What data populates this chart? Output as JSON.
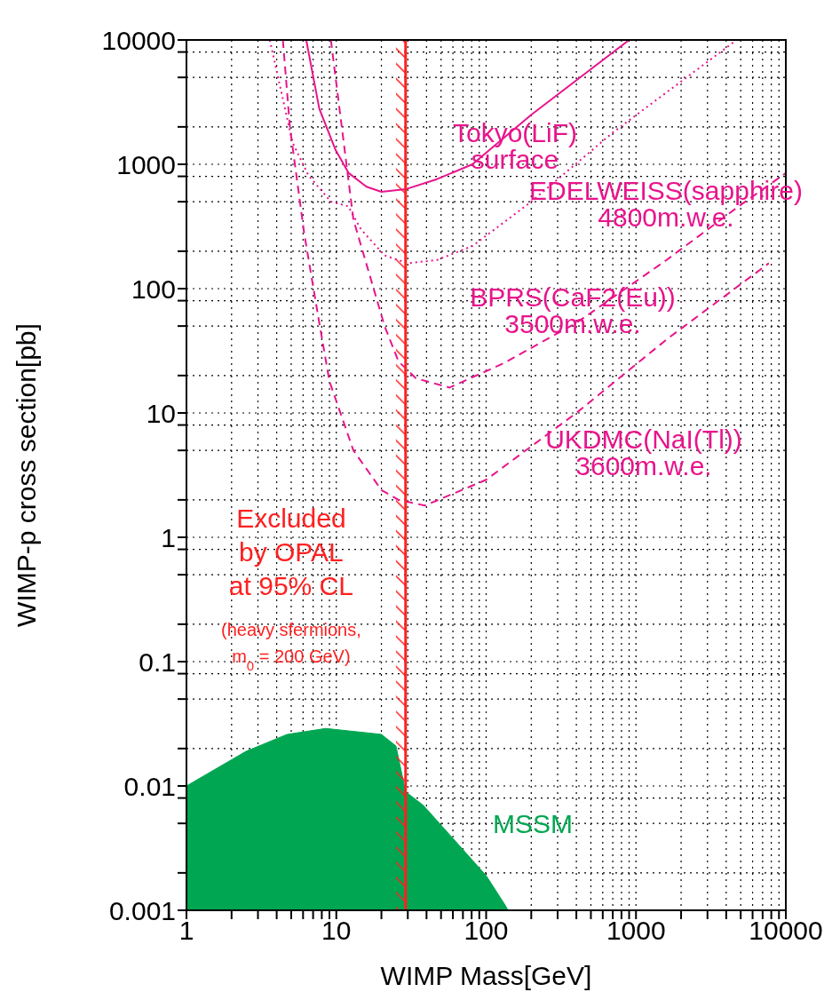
{
  "chart_data": {
    "type": "line",
    "xlabel": "WIMP Mass[GeV]",
    "ylabel": "WIMP-p cross section[pb]",
    "log": "xy",
    "grid": true,
    "xlim": [
      1,
      10000
    ],
    "ylim": [
      0.001,
      10000
    ],
    "xticks": [
      1,
      {
        "value": 2,
        "label": null
      },
      {
        "value": 3,
        "label": null
      },
      {
        "value": 4,
        "label": null
      },
      {
        "value": 5,
        "label": null
      },
      {
        "value": 6,
        "label": null
      },
      {
        "value": 7,
        "label": null
      },
      {
        "value": 8,
        "label": null
      },
      {
        "value": 9,
        "label": null
      },
      10,
      {
        "value": 20,
        "label": null
      },
      {
        "value": 30,
        "label": null
      },
      {
        "value": 40,
        "label": null
      },
      {
        "value": 50,
        "label": null
      },
      {
        "value": 60,
        "label": null
      },
      {
        "value": 70,
        "label": null
      },
      {
        "value": 80,
        "label": null
      },
      {
        "value": 90,
        "label": null
      },
      100,
      {
        "value": 200,
        "label": null
      },
      {
        "value": 300,
        "label": null
      },
      {
        "value": 400,
        "label": null
      },
      {
        "value": 500,
        "label": null
      },
      {
        "value": 600,
        "label": null
      },
      {
        "value": 700,
        "label": null
      },
      {
        "value": 800,
        "label": null
      },
      {
        "value": 900,
        "label": null
      },
      1000,
      {
        "value": 2000,
        "label": null
      },
      {
        "value": 3000,
        "label": null
      },
      {
        "value": 4000,
        "label": null
      },
      {
        "value": 5000,
        "label": null
      },
      {
        "value": 6000,
        "label": null
      },
      {
        "value": 7000,
        "label": null
      },
      {
        "value": 8000,
        "label": null
      },
      {
        "value": 9000,
        "label": null
      },
      10000
    ],
    "yticks": [
      0.001,
      {
        "value": 0.002,
        "label": null
      },
      {
        "value": 0.005,
        "label": null
      },
      {
        "value": 0.008,
        "label": null
      },
      0.01,
      {
        "value": 0.02,
        "label": null
      },
      {
        "value": 0.05,
        "label": null
      },
      {
        "value": 0.08,
        "label": null
      },
      0.1,
      {
        "value": 0.2,
        "label": null
      },
      {
        "value": 0.5,
        "label": null
      },
      {
        "value": 0.8,
        "label": null
      },
      1,
      {
        "value": 2,
        "label": null
      },
      {
        "value": 5,
        "label": null
      },
      {
        "value": 8,
        "label": null
      },
      10,
      {
        "value": 20,
        "label": null
      },
      {
        "value": 50,
        "label": null
      },
      {
        "value": 80,
        "label": null
      },
      100,
      {
        "value": 200,
        "label": null
      },
      {
        "value": 500,
        "label": null
      },
      {
        "value": 800,
        "label": null
      },
      1000,
      {
        "value": 2000,
        "label": null
      },
      {
        "value": 5000,
        "label": null
      },
      {
        "value": 8000,
        "label": null
      },
      10000
    ],
    "series": [
      {
        "name": "Tokyo(LiF) surface",
        "color": "#e8148c",
        "line_style": "solid",
        "x": [
          6.3,
          7.7,
          9.9,
          12.1,
          15.9,
          20,
          29,
          47,
          81,
          200,
          900
        ],
        "values": [
          10000,
          2800,
          1300,
          850,
          660,
          600,
          630,
          760,
          1000,
          2500,
          10000
        ]
      },
      {
        "name": "EDELWEISS(sapphire) 4800m.w.e.",
        "color": "#e8148c",
        "line_style": "dotted",
        "x": [
          3.6,
          5.1,
          6.5,
          9.2,
          12,
          14.6,
          21,
          30,
          47,
          81,
          200,
          700,
          4700
        ],
        "values": [
          10000,
          1500,
          820,
          500,
          460,
          300,
          185,
          160,
          170,
          220,
          500,
          1800,
          10000
        ]
      },
      {
        "name": "BPRS(CaF2(Eu)) 3500m.w.e.",
        "color": "#e8148c",
        "line_style": "dashed",
        "x": [
          9.2,
          13,
          21,
          26,
          34,
          57,
          130,
          400,
          1600,
          5100,
          10000
        ],
        "values": [
          10000,
          360,
          50,
          26,
          19,
          16,
          25,
          53,
          170,
          480,
          850
        ]
      },
      {
        "name": "UKDMC(NaI(Tl)) 3600m.w.e.",
        "color": "#e8148c",
        "line_style": "dashed",
        "x": [
          4.4,
          4.9,
          6.1,
          7.7,
          9,
          13,
          20,
          26,
          39,
          100,
          400,
          1600,
          7700
        ],
        "values": [
          10000,
          2000,
          280,
          53,
          18,
          5,
          2.4,
          2,
          1.8,
          2.9,
          10,
          39,
          160
        ]
      },
      {
        "name": "MSSM",
        "type": "area",
        "color": "#00a651",
        "x": [
          1,
          2.5,
          4.7,
          8.5,
          20,
          25,
          29,
          38,
          65,
          100,
          134,
          140
        ],
        "values": [
          0.01,
          0.019,
          0.026,
          0.029,
          0.026,
          0.021,
          0.009,
          0.007,
          0.0034,
          0.0019,
          0.0011,
          0.001
        ]
      }
    ],
    "bands": [
      {
        "axis": "x",
        "from": 25,
        "to": 29,
        "color": "#ff2020",
        "label": "Excluded\nby OPAL\nat 95% CL\n(heavy sfermions,\nm$_{0}$ = 200 GeV)"
      }
    ],
    "ref_lines": [
      {
        "axis": "x",
        "value": 29,
        "color": "#ff2020"
      }
    ]
  }
}
